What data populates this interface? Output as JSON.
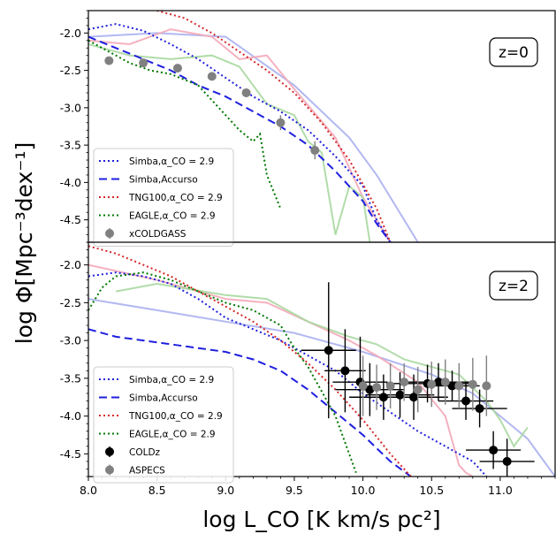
{
  "figure": {
    "xlabel": "log L_CO [K km/s pc²]",
    "ylabel": "log Φ[Mpc⁻³dex⁻¹]"
  },
  "chart_data": [
    {
      "type": "line",
      "panel_label": "z=0",
      "xlim": [
        8.0,
        11.4
      ],
      "ylim": [
        -4.8,
        -1.7
      ],
      "yticks": [
        "-2.0",
        "-2.5",
        "-3.0",
        "-3.5",
        "-4.0",
        "-4.5"
      ],
      "legend_position": "lower-left",
      "series": [
        {
          "name": "Simba,α_CO = 2.9",
          "color": "#1f1fdf",
          "style": "dotted",
          "x": [
            8.0,
            8.2,
            8.4,
            8.6,
            8.8,
            9.0,
            9.2,
            9.4,
            9.6,
            9.8,
            10.0,
            10.1,
            10.2
          ],
          "y": [
            -1.95,
            -1.88,
            -1.97,
            -2.15,
            -2.35,
            -2.6,
            -2.85,
            -3.05,
            -3.3,
            -3.65,
            -4.05,
            -4.5,
            -4.8
          ]
        },
        {
          "name": "Simba,Accurso",
          "color": "#1f1fdf",
          "style": "dashed",
          "x": [
            8.0,
            8.2,
            8.4,
            8.6,
            8.8,
            9.0,
            9.2,
            9.4,
            9.6,
            9.8,
            10.0,
            10.1,
            10.2
          ],
          "y": [
            -2.05,
            -2.2,
            -2.35,
            -2.5,
            -2.7,
            -2.85,
            -3.05,
            -3.25,
            -3.5,
            -3.85,
            -4.25,
            -4.55,
            -4.8
          ]
        },
        {
          "name": "TNG100,α_CO = 2.9",
          "color": "#d62728",
          "style": "dotted",
          "x": [
            8.5,
            8.7,
            8.9,
            9.1,
            9.3,
            9.5,
            9.7,
            9.9,
            10.1,
            10.2
          ],
          "y": [
            -1.7,
            -1.8,
            -2.0,
            -2.25,
            -2.5,
            -2.8,
            -3.2,
            -3.7,
            -4.35,
            -4.8
          ]
        },
        {
          "name": "EAGLE,α_CO = 2.9",
          "color": "#007700",
          "style": "dotted",
          "x": [
            8.0,
            8.15,
            8.3,
            8.45,
            8.6,
            8.8,
            9.0,
            9.1,
            9.2,
            9.25,
            9.3,
            9.4
          ],
          "y": [
            -2.1,
            -2.25,
            -2.4,
            -2.5,
            -2.55,
            -2.7,
            -3.1,
            -3.3,
            -3.45,
            -3.35,
            -3.9,
            -4.35
          ]
        },
        {
          "name": "xCOLDGASS",
          "color": "#808080",
          "style": "points",
          "x": [
            8.15,
            8.4,
            8.65,
            8.9,
            9.15,
            9.4,
            9.65
          ],
          "y": [
            -2.37,
            -2.4,
            -2.47,
            -2.58,
            -2.8,
            -3.2,
            -3.57
          ],
          "yerr": [
            0.03,
            0.03,
            0.04,
            0.05,
            0.06,
            0.1,
            0.12
          ]
        },
        {
          "name": "",
          "color": "#aab0f0",
          "style": "solid",
          "x": [
            8.0,
            8.5,
            9.0,
            9.5,
            9.9,
            10.1,
            10.3,
            10.4
          ],
          "y": [
            -2.05,
            -2.0,
            -2.05,
            -2.7,
            -3.4,
            -3.9,
            -4.5,
            -4.8
          ]
        },
        {
          "name": "",
          "color": "#f4a8b8",
          "style": "solid",
          "x": [
            8.0,
            8.3,
            8.6,
            8.9,
            9.1,
            9.3,
            9.5,
            9.8,
            10.0,
            10.2
          ],
          "y": [
            -2.1,
            -2.15,
            -1.95,
            -2.05,
            -2.35,
            -2.3,
            -2.75,
            -3.4,
            -4.2,
            -4.8
          ]
        },
        {
          "name": "",
          "color": "#a8d8a0",
          "style": "solid",
          "x": [
            8.0,
            8.3,
            8.6,
            8.9,
            9.1,
            9.3,
            9.5,
            9.6,
            9.7,
            9.8,
            9.9,
            10.0,
            10.05
          ],
          "y": [
            -2.15,
            -2.3,
            -2.35,
            -2.3,
            -2.45,
            -2.95,
            -3.1,
            -3.45,
            -3.6,
            -4.7,
            -4.05,
            -4.2,
            -4.8
          ]
        }
      ]
    },
    {
      "type": "line",
      "panel_label": "z=2",
      "xlim": [
        8.0,
        11.4
      ],
      "ylim": [
        -4.8,
        -1.7
      ],
      "xticks": [
        "8.0",
        "8.5",
        "9.0",
        "9.5",
        "10.0",
        "10.5",
        "11.0"
      ],
      "yticks": [
        "-2.0",
        "-2.5",
        "-3.0",
        "-3.5",
        "-4.0",
        "-4.5"
      ],
      "legend_position": "lower-left",
      "series": [
        {
          "name": "Simba,α_CO = 2.9",
          "color": "#1f1fdf",
          "style": "dotted",
          "x": [
            8.0,
            8.2,
            8.4,
            8.6,
            8.8,
            9.0,
            9.2,
            9.4,
            9.6,
            9.8,
            10.0,
            10.2,
            10.4,
            10.6,
            10.8,
            10.9
          ],
          "y": [
            -2.15,
            -2.1,
            -2.15,
            -2.25,
            -2.45,
            -2.7,
            -2.85,
            -3.0,
            -3.2,
            -3.4,
            -3.7,
            -3.95,
            -4.2,
            -4.4,
            -4.6,
            -4.8
          ]
        },
        {
          "name": "Simba,Accurso",
          "color": "#1f1fdf",
          "style": "dashed",
          "x": [
            8.0,
            8.2,
            8.4,
            8.6,
            8.8,
            9.0,
            9.2,
            9.4,
            9.6,
            9.8,
            10.0,
            10.2,
            10.35
          ],
          "y": [
            -2.85,
            -2.95,
            -3.0,
            -3.05,
            -3.1,
            -3.15,
            -3.25,
            -3.4,
            -3.65,
            -3.95,
            -4.25,
            -4.6,
            -4.8
          ]
        },
        {
          "name": "TNG100,α_CO = 2.9",
          "color": "#d62728",
          "style": "dotted",
          "x": [
            8.0,
            8.2,
            8.4,
            8.6,
            8.8,
            9.0,
            9.2,
            9.4,
            9.6,
            9.8,
            10.0,
            10.2,
            10.35
          ],
          "y": [
            -1.75,
            -1.85,
            -2.0,
            -2.15,
            -2.35,
            -2.55,
            -2.75,
            -3.0,
            -3.3,
            -3.65,
            -4.05,
            -4.5,
            -4.8
          ]
        },
        {
          "name": "EAGLE,α_CO = 2.9",
          "color": "#007700",
          "style": "dotted",
          "x": [
            8.0,
            8.1,
            8.2,
            8.4,
            8.6,
            8.8,
            9.0,
            9.2,
            9.4,
            9.5,
            9.6,
            9.8,
            9.95
          ],
          "y": [
            -2.6,
            -2.3,
            -2.15,
            -2.1,
            -2.2,
            -2.35,
            -2.5,
            -2.6,
            -2.8,
            -3.1,
            -3.35,
            -4.0,
            -4.75
          ]
        },
        {
          "name": "COLDz",
          "color": "#000000",
          "style": "points",
          "x": [
            9.75,
            9.87,
            9.98,
            10.05,
            10.15,
            10.27,
            10.37,
            10.47,
            10.55,
            10.65,
            10.75,
            10.85,
            10.95,
            11.05
          ],
          "y": [
            -3.13,
            -3.4,
            -3.55,
            -3.65,
            -3.75,
            -3.72,
            -3.75,
            -3.57,
            -3.55,
            -3.6,
            -3.8,
            -3.9,
            -4.45,
            -4.6
          ],
          "yerr": [
            0.9,
            0.55,
            0.6,
            0.35,
            0.3,
            0.3,
            0.3,
            0.25,
            0.25,
            0.2,
            0.25,
            0.25,
            0.25,
            0.3
          ],
          "xerr": [
            0.2,
            0.15,
            0.2,
            0.25,
            0.25,
            0.25,
            0.25,
            0.3,
            0.25,
            0.2,
            0.2,
            0.2,
            0.2,
            0.2
          ]
        },
        {
          "name": "ASPECS",
          "color": "#808080",
          "style": "points",
          "x": [
            10.0,
            10.1,
            10.2,
            10.3,
            10.4,
            10.5,
            10.6,
            10.7,
            10.8,
            10.9
          ],
          "y": [
            -3.6,
            -3.62,
            -3.6,
            -3.55,
            -3.65,
            -3.58,
            -3.55,
            -3.6,
            -3.58,
            -3.6
          ],
          "yerr": [
            0.4,
            0.3,
            0.3,
            0.25,
            0.3,
            0.3,
            0.3,
            0.3,
            0.35,
            0.4
          ]
        },
        {
          "name": "",
          "color": "#aab0f0",
          "style": "solid",
          "x": [
            8.0,
            8.5,
            9.0,
            9.5,
            10.0,
            10.5,
            10.8,
            11.0,
            11.2,
            11.4
          ],
          "y": [
            -2.45,
            -2.6,
            -2.75,
            -2.9,
            -3.15,
            -3.45,
            -3.7,
            -4.0,
            -4.3,
            -4.8
          ]
        },
        {
          "name": "",
          "color": "#f4a8b8",
          "style": "solid",
          "x": [
            8.0,
            8.5,
            9.0,
            9.3,
            9.6,
            9.9,
            10.1,
            10.4,
            10.6,
            10.7,
            10.75,
            10.8
          ],
          "y": [
            -2.0,
            -2.2,
            -2.45,
            -2.5,
            -2.75,
            -3.0,
            -3.2,
            -3.55,
            -4.0,
            -4.65,
            -4.75,
            -4.8
          ]
        },
        {
          "name": "",
          "color": "#a8d8a0",
          "style": "solid",
          "x": [
            8.2,
            8.5,
            9.0,
            9.3,
            9.6,
            9.9,
            10.1,
            10.3,
            10.5,
            10.7,
            10.9,
            11.0,
            11.1,
            11.2
          ],
          "y": [
            -2.35,
            -2.25,
            -2.4,
            -2.45,
            -2.75,
            -2.95,
            -3.05,
            -3.25,
            -3.35,
            -3.45,
            -3.8,
            -4.05,
            -4.4,
            -4.15
          ]
        }
      ]
    }
  ]
}
